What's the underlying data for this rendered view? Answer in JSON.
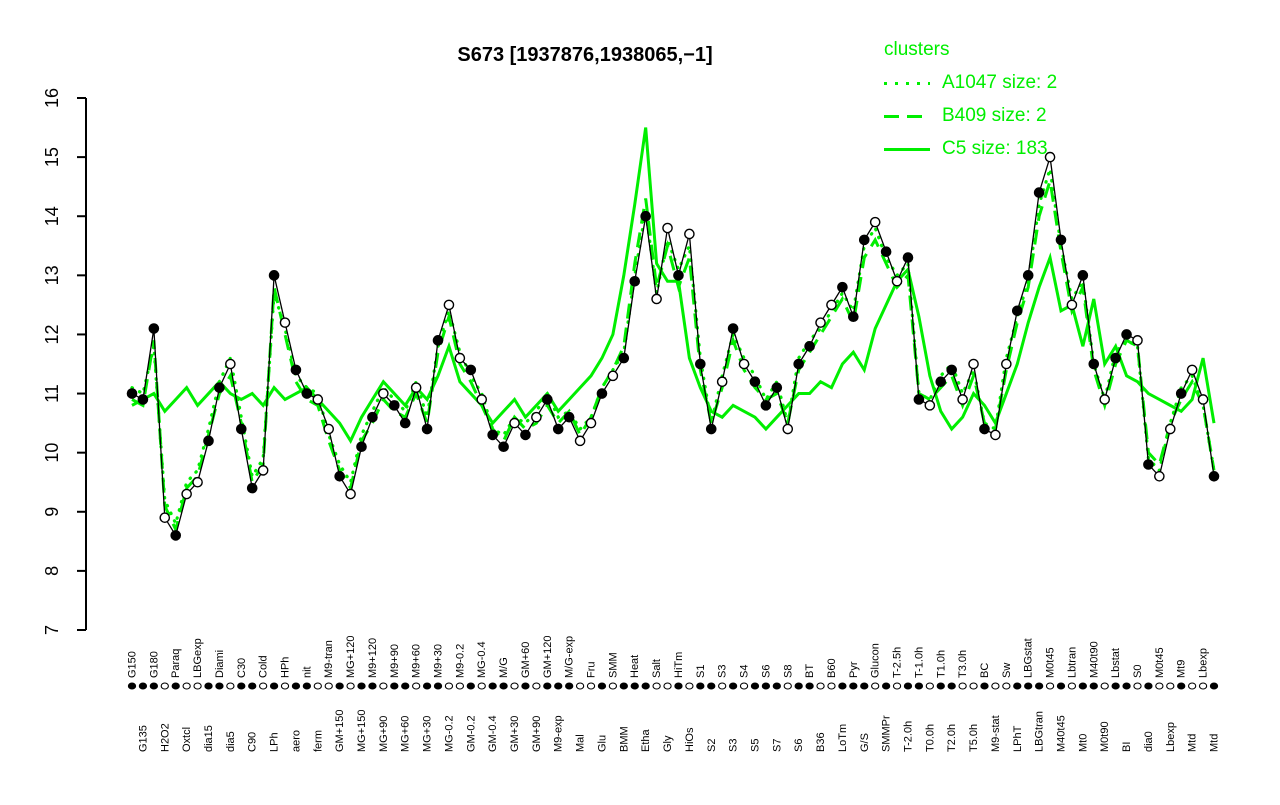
{
  "title": "S673 [1937876,1938065,−1]",
  "legend": {
    "heading": "clusters",
    "color": "#00ee00",
    "items": [
      {
        "label": "A1047 size: 2",
        "style": "dotted"
      },
      {
        "label": "B409 size: 2",
        "style": "dashed"
      },
      {
        "label": "C5 size: 183",
        "style": "solid"
      }
    ]
  },
  "chart_data": {
    "type": "line",
    "title": "S673 [1937876,1938065,−1]",
    "ylabel": "",
    "xlabel": "",
    "ylim": [
      7,
      16
    ],
    "yticks": [
      7,
      8,
      9,
      10,
      11,
      12,
      13,
      14,
      15,
      16
    ],
    "legend_position": "top-right",
    "grid": false,
    "categories": [
      "G150",
      "G135",
      "G180",
      "H2O2",
      "Paraq",
      "Oxtcl",
      "LBGexp",
      "dia15",
      "Diami",
      "dia5",
      "C30",
      "C90",
      "Cold",
      "LPh",
      "HPh",
      "aero",
      "nit",
      "ferm",
      "M9-tran",
      "GM+150",
      "MG+120",
      "MG+150",
      "M9+120",
      "MG+90",
      "M9+90",
      "MG+60",
      "M9+60",
      "MG+30",
      "M9+30",
      "MG-0.2",
      "M9-0.2",
      "GM-0.2",
      "MG-0.4",
      "GM-0.4",
      "M/G",
      "GM+30",
      "GM+60",
      "GM+90",
      "GM+120",
      "M9-exp",
      "M/G-exp",
      "Mal",
      "Fru",
      "Glu",
      "SMM",
      "BMM",
      "Heat",
      "Etha",
      "Salt",
      "Gly",
      "HiTm",
      "HiOs",
      "S1",
      "S2",
      "S3",
      "S3",
      "S4",
      "S5",
      "S6",
      "S7",
      "S8",
      "S6",
      "BT",
      "B36",
      "B60",
      "LoTm",
      "Pyr",
      "G/S",
      "Glucon",
      "SMMPr",
      "T-2.5h",
      "T-2.0h",
      "T-1.0h",
      "T0.0h",
      "T1.0h",
      "T2.0h",
      "T3.0h",
      "T5.0h",
      "BC",
      "M9-stat",
      "Sw",
      "LPhT",
      "LBGstat",
      "LBGtran",
      "M0t45",
      "M40t45",
      "Lbtran",
      "Mt0",
      "M40t90",
      "M0t90",
      "Lbstat",
      "BI",
      "S0",
      "dia0",
      "M0t45",
      "Lbexp",
      "Mt9",
      "Mtd",
      "Lbexp",
      "Mtd"
    ],
    "series": [
      {
        "name": "S673",
        "color": "#000000",
        "style": "solid-points",
        "values": [
          11.0,
          10.9,
          12.1,
          8.9,
          8.6,
          9.3,
          9.5,
          10.2,
          11.1,
          11.5,
          10.4,
          9.4,
          9.7,
          13.0,
          12.2,
          11.4,
          11.0,
          10.9,
          10.4,
          9.6,
          9.3,
          10.1,
          10.6,
          11.0,
          10.8,
          10.5,
          11.1,
          10.4,
          11.9,
          12.5,
          11.6,
          11.4,
          10.9,
          10.3,
          10.1,
          10.5,
          10.3,
          10.6,
          10.9,
          10.4,
          10.6,
          10.2,
          10.5,
          11.0,
          11.3,
          11.6,
          12.9,
          14.0,
          12.6,
          13.8,
          13.0,
          13.7,
          11.5,
          10.4,
          11.2,
          12.1,
          11.5,
          11.2,
          10.8,
          11.1,
          10.4,
          11.5,
          11.8,
          12.2,
          12.5,
          12.8,
          12.3,
          13.6,
          13.9,
          13.4,
          12.9,
          13.3,
          10.9,
          10.8,
          11.2,
          11.4,
          10.9,
          11.5,
          10.4,
          10.3,
          11.5,
          12.4,
          13.0,
          14.4,
          15.0,
          13.6,
          12.5,
          13.0,
          11.5,
          10.9,
          11.6,
          12.0,
          11.9,
          9.8,
          9.6,
          10.4,
          11.0,
          11.4,
          10.9,
          9.6
        ]
      },
      {
        "name": "A1047",
        "color": "#00ee00",
        "style": "dotted",
        "values": [
          11.1,
          11.0,
          11.8,
          9.2,
          8.8,
          9.5,
          9.7,
          10.4,
          11.2,
          11.6,
          10.6,
          9.6,
          9.9,
          12.7,
          12.1,
          11.3,
          11.1,
          11.0,
          10.3,
          9.8,
          9.5,
          10.3,
          10.7,
          11.1,
          10.9,
          10.7,
          11.2,
          10.6,
          11.8,
          12.4,
          11.7,
          11.3,
          11.0,
          10.4,
          10.3,
          10.6,
          10.5,
          10.7,
          11.0,
          10.6,
          10.7,
          10.4,
          10.6,
          11.1,
          11.4,
          11.7,
          13.0,
          14.1,
          12.7,
          13.6,
          13.1,
          13.5,
          11.6,
          10.5,
          11.3,
          12.0,
          11.6,
          11.3,
          10.9,
          11.2,
          10.5,
          11.6,
          11.9,
          12.1,
          12.4,
          12.7,
          12.4,
          13.5,
          13.8,
          13.3,
          13.0,
          13.2,
          11.0,
          10.9,
          11.3,
          11.5,
          11.0,
          11.4,
          10.5,
          10.4,
          11.6,
          12.3,
          12.9,
          14.2,
          14.8,
          13.5,
          12.6,
          12.9,
          11.5,
          10.9,
          11.7,
          11.9,
          11.8,
          9.9,
          9.7,
          10.5,
          11.1,
          11.3,
          10.8,
          9.7
        ]
      },
      {
        "name": "B409",
        "color": "#00ee00",
        "style": "dashed",
        "values": [
          10.9,
          10.8,
          11.9,
          9.1,
          8.7,
          9.4,
          9.6,
          10.3,
          11.0,
          11.3,
          10.5,
          9.5,
          9.8,
          12.8,
          12.0,
          11.2,
          10.9,
          10.8,
          10.2,
          9.7,
          9.4,
          10.2,
          10.5,
          10.9,
          10.7,
          10.6,
          11.0,
          10.5,
          11.7,
          12.3,
          11.5,
          11.2,
          10.8,
          10.4,
          10.2,
          10.6,
          10.4,
          10.5,
          10.8,
          10.5,
          10.7,
          10.3,
          10.6,
          11.1,
          11.4,
          11.8,
          13.2,
          14.3,
          12.8,
          13.5,
          12.8,
          13.3,
          11.4,
          10.5,
          11.1,
          11.9,
          11.4,
          11.1,
          10.9,
          11.0,
          10.5,
          11.4,
          11.7,
          12.0,
          12.3,
          12.6,
          12.2,
          13.3,
          13.6,
          13.2,
          12.8,
          13.0,
          11.0,
          10.9,
          11.1,
          11.3,
          10.8,
          11.3,
          10.5,
          10.4,
          11.4,
          12.2,
          12.8,
          14.0,
          14.6,
          13.4,
          12.4,
          12.8,
          11.4,
          10.8,
          11.5,
          11.9,
          11.8,
          10.0,
          9.8,
          10.5,
          10.9,
          11.2,
          10.8,
          9.7
        ]
      },
      {
        "name": "C5",
        "color": "#00ee00",
        "style": "solid",
        "values": [
          10.8,
          10.9,
          11.0,
          10.7,
          10.9,
          11.1,
          10.8,
          11.0,
          11.2,
          11.0,
          10.9,
          11.0,
          10.8,
          11.1,
          10.9,
          11.0,
          11.1,
          10.9,
          10.7,
          10.5,
          10.2,
          10.6,
          10.9,
          11.2,
          11.0,
          10.8,
          11.1,
          10.9,
          11.3,
          11.8,
          11.2,
          11.0,
          10.8,
          10.5,
          10.7,
          10.9,
          10.6,
          10.8,
          11.0,
          10.7,
          10.9,
          11.1,
          11.3,
          11.6,
          12.0,
          13.0,
          14.2,
          15.5,
          13.2,
          12.9,
          12.9,
          11.6,
          11.1,
          10.7,
          10.6,
          10.8,
          10.7,
          10.6,
          10.4,
          10.6,
          10.8,
          11.0,
          11.0,
          11.2,
          11.1,
          11.5,
          11.7,
          11.4,
          12.1,
          12.5,
          12.9,
          13.1,
          12.3,
          11.3,
          10.7,
          10.4,
          10.6,
          11.0,
          10.8,
          10.5,
          11.0,
          11.5,
          12.2,
          12.8,
          13.3,
          12.4,
          12.5,
          11.8,
          12.6,
          11.5,
          11.8,
          11.3,
          11.2,
          11.0,
          10.9,
          10.8,
          10.7,
          10.9,
          11.6,
          10.5
        ]
      }
    ],
    "point_filled": [
      1,
      1,
      1,
      0,
      1,
      0,
      0,
      1,
      1,
      0,
      1,
      1,
      0,
      1,
      0,
      1,
      1,
      0,
      0,
      1,
      0,
      1,
      1,
      0,
      1,
      1,
      0,
      1,
      1,
      0,
      0,
      1,
      0,
      1,
      1,
      0,
      1,
      0,
      1,
      1,
      1,
      0,
      0,
      1,
      0,
      1,
      1,
      1,
      0,
      0,
      1,
      0,
      1,
      1,
      0,
      1,
      0,
      1,
      1,
      1,
      0,
      1,
      1,
      0,
      0,
      1,
      1,
      1,
      0,
      1,
      0,
      1,
      1,
      0,
      1,
      1,
      0,
      0,
      1,
      0,
      0,
      1,
      1,
      1,
      0,
      1,
      0,
      1,
      1,
      0,
      1,
      1,
      0,
      1,
      0,
      0,
      1,
      0,
      0,
      1
    ]
  }
}
